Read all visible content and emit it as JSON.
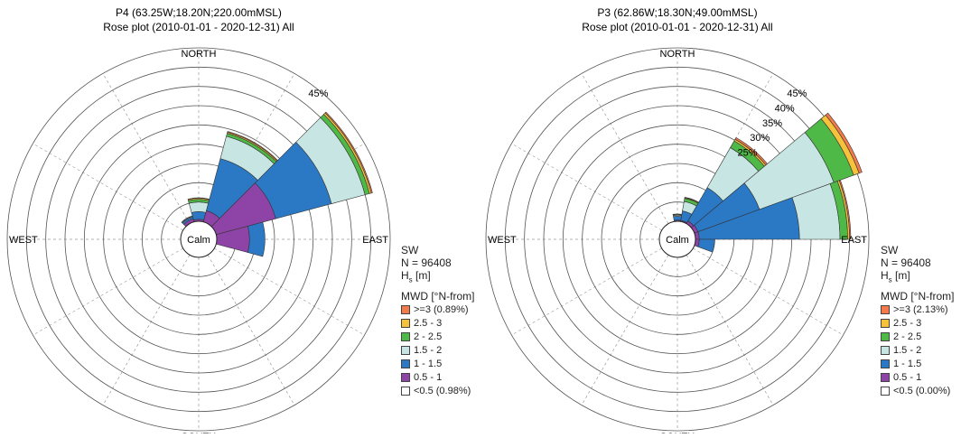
{
  "chart_data": [
    {
      "type": "rose",
      "title": "P4 (63.25W;18.20N;220.00mMSL)",
      "subtitle": "Rose plot  (2010-01-01 - 2020-12-31) All",
      "directions": {
        "north": "NORTH",
        "south": "SOUTH",
        "east": "EAST",
        "west": "WEST"
      },
      "center_label": "Calm",
      "ring_step_percent": 5,
      "ring_count": 9,
      "ring_labels": [
        {
          "percent": 45,
          "label": "45%"
        }
      ],
      "sector_width_deg": 30,
      "bins": [
        "<0.5",
        "0.5 - 1",
        "1 - 1.5",
        "1.5 - 2",
        "2 - 2.5",
        "2.5 - 3",
        ">=3"
      ],
      "sectors": [
        {
          "direction_deg": 0,
          "values": [
            0,
            0.5,
            2.0,
            2.5,
            0.7,
            0.3,
            0.1
          ]
        },
        {
          "direction_deg": 30,
          "values": [
            0,
            3.0,
            14.0,
            6.0,
            0.8,
            0.3,
            0.2
          ]
        },
        {
          "direction_deg": 60,
          "values": [
            0,
            16.0,
            15.0,
            9.0,
            1.2,
            0.5,
            0.3
          ]
        },
        {
          "direction_deg": 90,
          "values": [
            0,
            8.5,
            4.0,
            0,
            0,
            0,
            0
          ]
        },
        {
          "direction_deg": 330,
          "values": [
            0,
            0.8,
            0.5,
            0.2,
            0.1,
            0,
            0
          ]
        }
      ],
      "legend": {
        "title": "SW",
        "n": "N = 96408",
        "variable": "H",
        "variable_sub": "s",
        "unit": "[m]",
        "header": "MWD [°N-from]",
        "items": [
          {
            "label": ">=3 (0.89%)",
            "color": "#f47a4b"
          },
          {
            "label": "2.5 - 3",
            "color": "#f6c23c"
          },
          {
            "label": "2 - 2.5",
            "color": "#4fb948"
          },
          {
            "label": "1.5 - 2",
            "color": "#c7e6e3"
          },
          {
            "label": "1 - 1.5",
            "color": "#2b78c5"
          },
          {
            "label": "0.5 - 1",
            "color": "#8e44a6"
          },
          {
            "label": "<0.5 (0.98%)",
            "color": "#ffffff"
          }
        ]
      }
    },
    {
      "type": "rose",
      "title": "P3 (62.86W;18.30N;49.00mMSL)",
      "subtitle": "Rose plot  (2010-01-01 - 2020-12-31) All",
      "directions": {
        "north": "NORTH",
        "south": "SOUTH",
        "east": "EAST",
        "west": "WEST"
      },
      "center_label": "Calm",
      "ring_step_percent": 5,
      "ring_count": 9,
      "ring_labels": [
        {
          "percent": 25,
          "label": "25%"
        },
        {
          "percent": 30,
          "label": "30%"
        },
        {
          "percent": 35,
          "label": "35%"
        },
        {
          "percent": 40,
          "label": "40%"
        },
        {
          "percent": 45,
          "label": "45%"
        }
      ],
      "sector_width_deg": 20,
      "bins": [
        "<0.5",
        "0.5 - 1",
        "1 - 1.5",
        "1.5 - 2",
        "2 - 2.5",
        "2.5 - 3",
        ">=3"
      ],
      "sectors": [
        {
          "direction_deg": 20,
          "values": [
            0,
            0.3,
            2.5,
            2.5,
            0.8,
            0.2,
            0.1
          ]
        },
        {
          "direction_deg": 40,
          "values": [
            0,
            0.8,
            10.0,
            12.0,
            2.0,
            0.5,
            0.5
          ]
        },
        {
          "direction_deg": 60,
          "values": [
            0,
            1.0,
            17.0,
            20.5,
            5.5,
            1.5,
            0.8
          ]
        },
        {
          "direction_deg": 80,
          "values": [
            0,
            1.0,
            26.0,
            10.5,
            2.0,
            0.5,
            0.3
          ]
        },
        {
          "direction_deg": 100,
          "values": [
            0,
            1.0,
            4.0,
            0,
            0,
            0,
            0
          ]
        },
        {
          "direction_deg": 0,
          "values": [
            0,
            0.3,
            1.0,
            0.3,
            0.2,
            0.1,
            0
          ]
        }
      ],
      "legend": {
        "title": "SW",
        "n": "N = 96408",
        "variable": "H",
        "variable_sub": "s",
        "unit": "[m]",
        "header": "MWD [°N-from]",
        "items": [
          {
            "label": ">=3 (2.13%)",
            "color": "#f47a4b"
          },
          {
            "label": "2.5 - 3",
            "color": "#f6c23c"
          },
          {
            "label": "2 - 2.5",
            "color": "#4fb948"
          },
          {
            "label": "1.5 - 2",
            "color": "#c7e6e3"
          },
          {
            "label": "1 - 1.5",
            "color": "#2b78c5"
          },
          {
            "label": "0.5 - 1",
            "color": "#8e44a6"
          },
          {
            "label": "<0.5 (0.00%)",
            "color": "#ffffff"
          }
        ]
      }
    }
  ]
}
